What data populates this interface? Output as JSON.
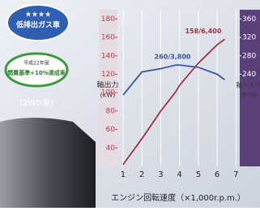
{
  "badges": {
    "stars": "★★★★",
    "emission": "低排出ガス車",
    "fuel_year": "平成22年度",
    "fuel": "燃費基準+10%達成車",
    "drive": "(2WD車)"
  },
  "chart_data": {
    "type": "line",
    "x": [
      1,
      2,
      3,
      3.8,
      4,
      5,
      6,
      6.4
    ],
    "xlim": [
      0.7,
      7.2
    ],
    "xticks": [
      1,
      2,
      3,
      4,
      5,
      6,
      7
    ],
    "xlabel": "エンジン回転速度（×1,000r.p.m.）",
    "ylim": [
      20,
      190
    ],
    "yticks": [
      40,
      60,
      80,
      100,
      120,
      140,
      160,
      180
    ],
    "ylabel": "軸出力",
    "yunit": "(kW)",
    "y2lim": [
      40,
      380
    ],
    "y2ticks": [
      240,
      280,
      320,
      360
    ],
    "y2label": "軸トルク",
    "y2unit": "(N·m)",
    "grid": true,
    "series": [
      {
        "name": "軸出力",
        "color": "#a3303f",
        "values": [
          22,
          50,
          80,
          101,
          108,
          132,
          152,
          158
        ]
      },
      {
        "name": "軸トルク",
        "color": "#3b56a3",
        "axis": "y2",
        "values": [
          195,
          245,
          252,
          260,
          260,
          255,
          240,
          228
        ]
      }
    ],
    "annotations": [
      "260/3,800",
      "158/6,400"
    ]
  }
}
